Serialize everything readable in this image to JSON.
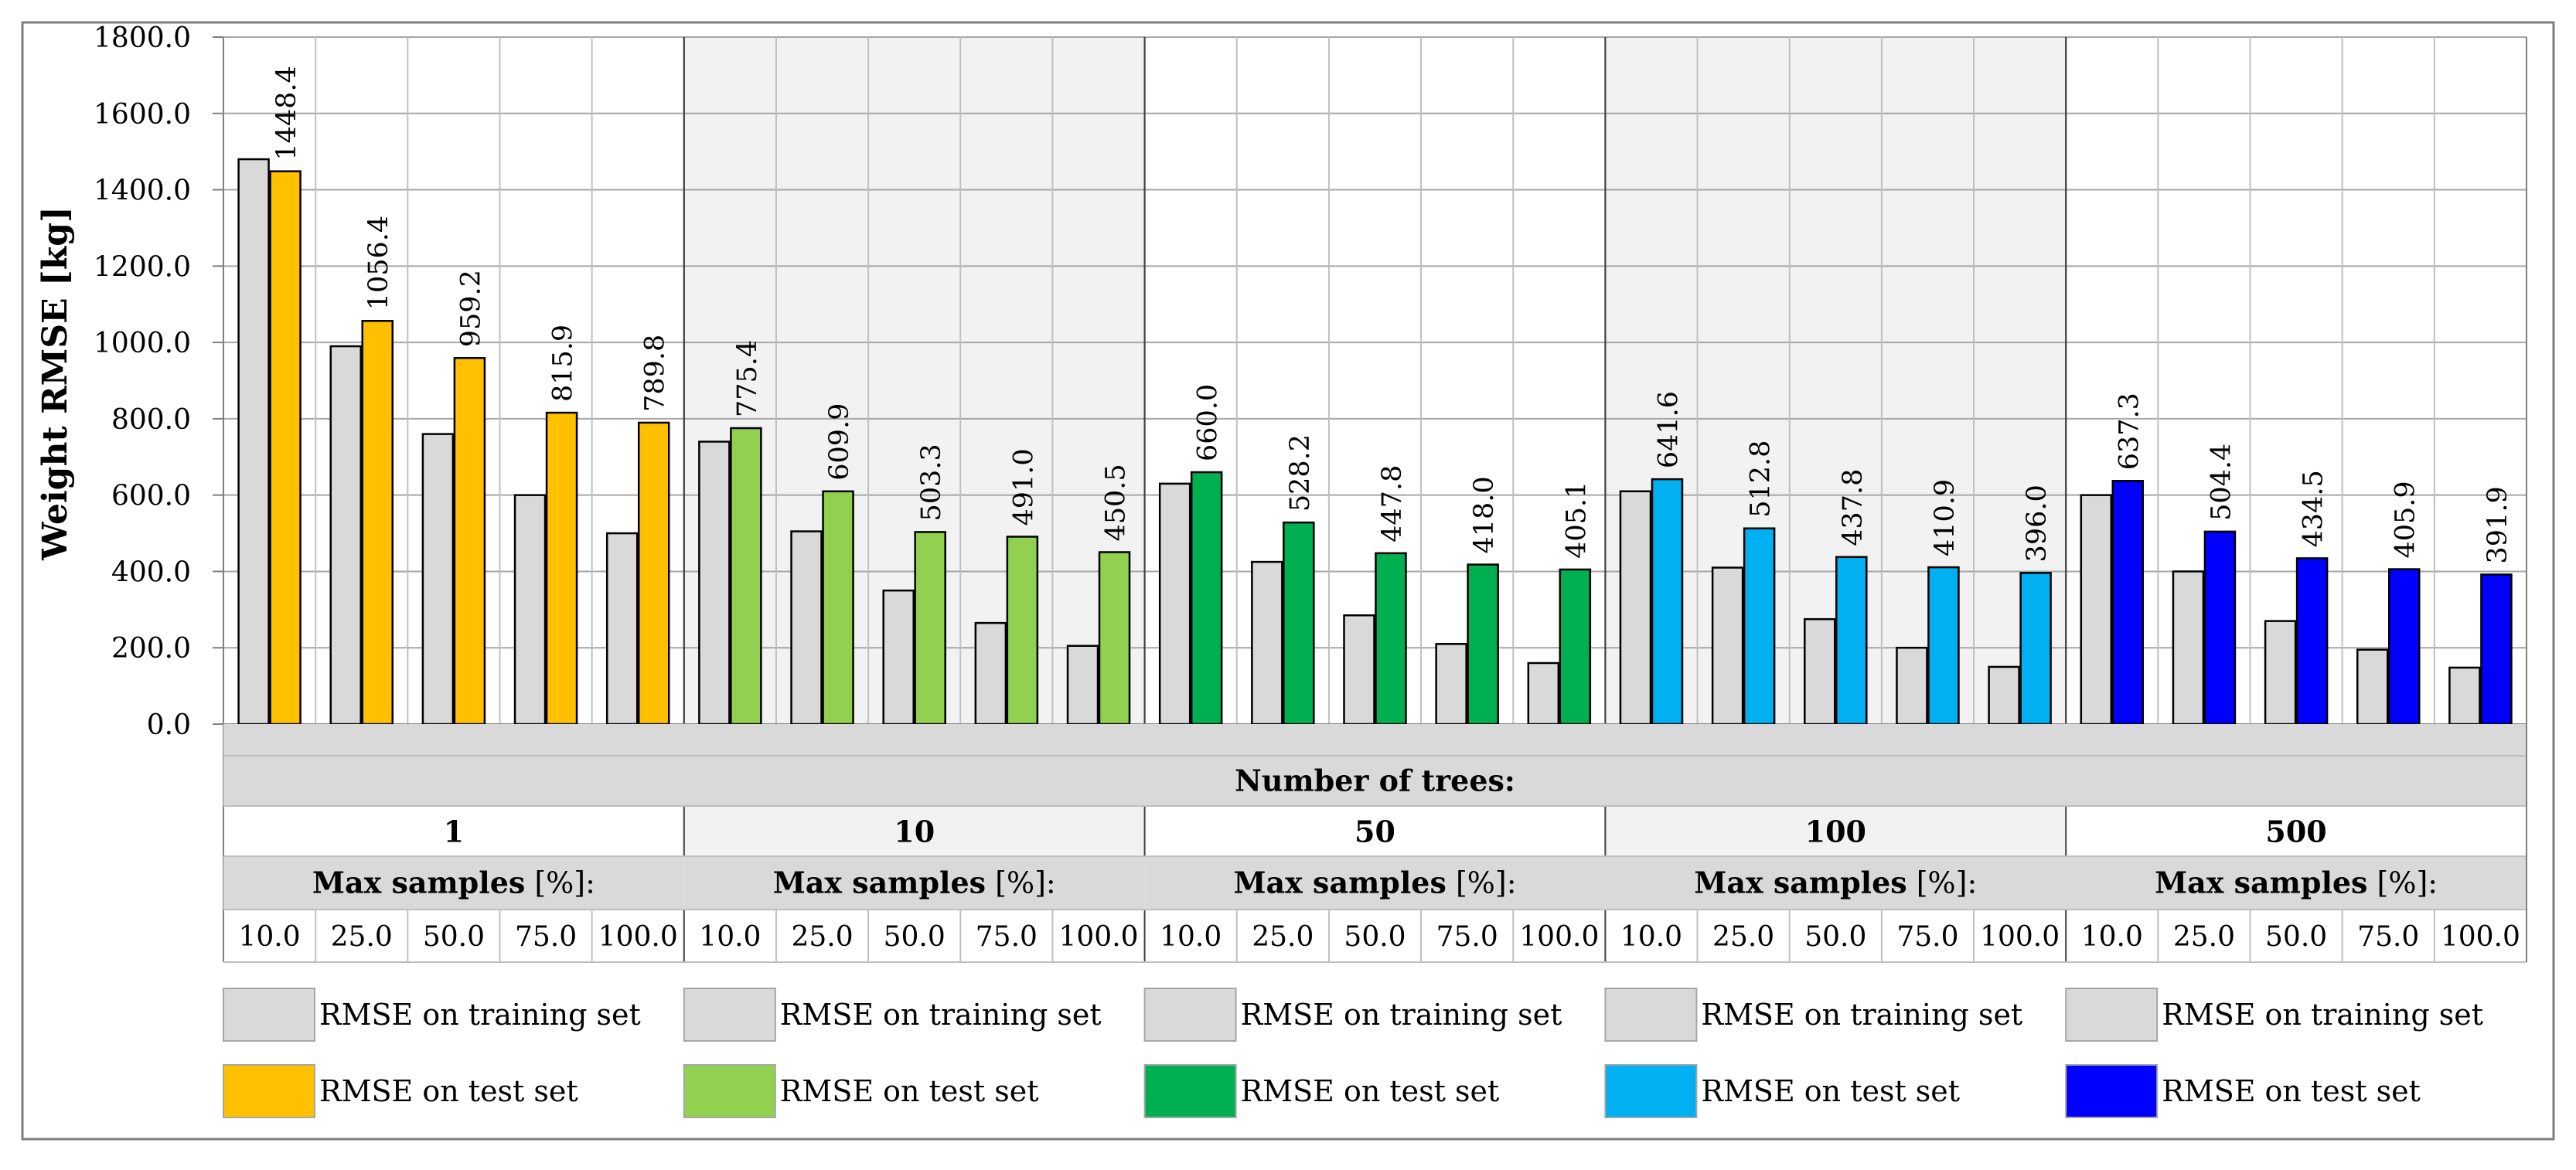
{
  "chart_data": {
    "type": "bar",
    "ylabel": "Weight RMSE [kg]",
    "ylim": [
      0,
      1800
    ],
    "y_ticks": [
      "0.0",
      "200.0",
      "400.0",
      "600.0",
      "800.0",
      "1000.0",
      "1200.0",
      "1400.0",
      "1600.0",
      "1800.0"
    ],
    "grid": true,
    "group_title": "Number of trees:",
    "subgroup_title_bold": "Max samples",
    "subgroup_title_rest": " [%]:",
    "sample_labels": [
      "10.0",
      "25.0",
      "50.0",
      "75.0",
      "100.0"
    ],
    "groups": [
      {
        "trees": "1",
        "test_color": "#ffc000",
        "train_values": [
          1480,
          990,
          760,
          600,
          500
        ],
        "test_values": [
          1448.4,
          1056.4,
          959.2,
          815.9,
          789.8
        ],
        "test_labels": [
          "1448.4",
          "1056.4",
          "959.2",
          "815.9",
          "789.8"
        ]
      },
      {
        "trees": "10",
        "test_color": "#92d050",
        "train_values": [
          740,
          505,
          350,
          265,
          205
        ],
        "test_values": [
          775.4,
          609.9,
          503.3,
          491.0,
          450.5
        ],
        "test_labels": [
          "775.4",
          "609.9",
          "503.3",
          "491.0",
          "450.5"
        ]
      },
      {
        "trees": "50",
        "test_color": "#00b050",
        "train_values": [
          630,
          425,
          285,
          210,
          160
        ],
        "test_values": [
          660.0,
          528.2,
          447.8,
          418.0,
          405.1
        ],
        "test_labels": [
          "660.0",
          "528.2",
          "447.8",
          "418.0",
          "405.1"
        ]
      },
      {
        "trees": "100",
        "test_color": "#00b0f0",
        "train_values": [
          610,
          410,
          275,
          200,
          150
        ],
        "test_values": [
          641.6,
          512.8,
          437.8,
          410.9,
          396.0
        ],
        "test_labels": [
          "641.6",
          "512.8",
          "437.8",
          "410.9",
          "396.0"
        ]
      },
      {
        "trees": "500",
        "test_color": "#0000ff",
        "train_values": [
          600,
          400,
          270,
          195,
          148
        ],
        "test_values": [
          637.3,
          504.4,
          434.5,
          405.9,
          391.9
        ],
        "test_labels": [
          "637.3",
          "504.4",
          "434.5",
          "405.9",
          "391.9"
        ]
      }
    ],
    "train_color": "#d9d9d9",
    "legend": {
      "train_label": "RMSE on training set",
      "test_label": "RMSE on test set"
    }
  }
}
